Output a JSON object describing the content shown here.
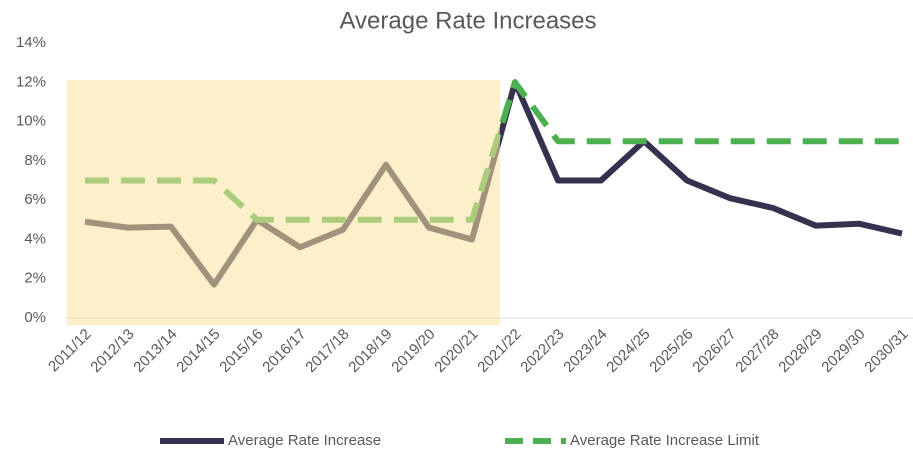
{
  "chart_data": {
    "type": "line",
    "title": "Average Rate Increases",
    "categories": [
      "2011/12",
      "2012/13",
      "2013/14",
      "2014/15",
      "2015/16",
      "2016/17",
      "2017/18",
      "2018/19",
      "2019/20",
      "2020/21",
      "2021/22",
      "2022/23",
      "2023/24",
      "2024/25",
      "2025/26",
      "2026/27",
      "2027/28",
      "2028/29",
      "2029/30",
      "2030/31"
    ],
    "series": [
      {
        "name": "Average Rate Increase",
        "color": "#35324f",
        "dashed": false,
        "values": [
          4.9,
          4.6,
          4.65,
          1.7,
          5.0,
          3.6,
          4.5,
          7.8,
          4.6,
          4.0,
          12.0,
          7.0,
          7.0,
          9.0,
          7.0,
          6.1,
          5.6,
          4.7,
          4.8,
          4.3
        ]
      },
      {
        "name": "Average Rate Increase Limit",
        "color": "#4caf50",
        "dashed": true,
        "values": [
          7,
          7,
          7,
          7,
          5,
          5,
          5,
          5,
          5,
          5,
          12,
          9,
          9,
          9,
          9,
          9,
          9,
          9,
          9,
          9
        ]
      }
    ],
    "ylim": [
      0,
      14
    ],
    "yticks": [
      {
        "value": 0,
        "label": "0%"
      },
      {
        "value": 2,
        "label": "2%"
      },
      {
        "value": 4,
        "label": "4%"
      },
      {
        "value": 6,
        "label": "6%"
      },
      {
        "value": 8,
        "label": "8%"
      },
      {
        "value": 10,
        "label": "10%"
      },
      {
        "value": 12,
        "label": "12%"
      },
      {
        "value": 14,
        "label": "14%"
      }
    ],
    "grid": false,
    "legend": "bottom"
  }
}
